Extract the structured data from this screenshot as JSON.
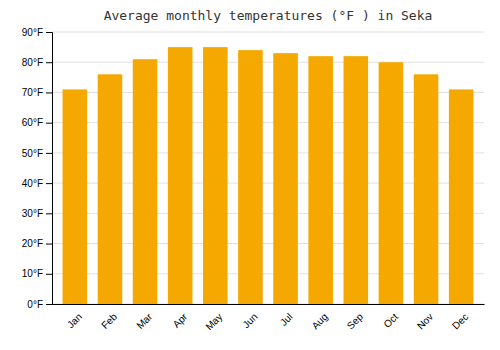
{
  "chart_data": {
    "type": "bar",
    "title": "Average monthly temperatures (°F ) in Seka",
    "categories": [
      "Jan",
      "Feb",
      "Mar",
      "Apr",
      "May",
      "Jun",
      "Jul",
      "Aug",
      "Sep",
      "Oct",
      "Nov",
      "Dec"
    ],
    "values": [
      71,
      76,
      81,
      85,
      85,
      84,
      83,
      82,
      82,
      80,
      76,
      71
    ],
    "color": "#F5A800",
    "ylim": [
      0,
      90
    ],
    "yticks": [
      {
        "value": 0,
        "label": "0°F"
      },
      {
        "value": 10,
        "label": "10°F"
      },
      {
        "value": 20,
        "label": "20°F"
      },
      {
        "value": 30,
        "label": "30°F"
      },
      {
        "value": 40,
        "label": "40°F"
      },
      {
        "value": 50,
        "label": "50°F"
      },
      {
        "value": 60,
        "label": "60°F"
      },
      {
        "value": 70,
        "label": "70°F"
      },
      {
        "value": 80,
        "label": "80°F"
      },
      {
        "value": 90,
        "label": "90°F"
      }
    ],
    "grid": true
  }
}
